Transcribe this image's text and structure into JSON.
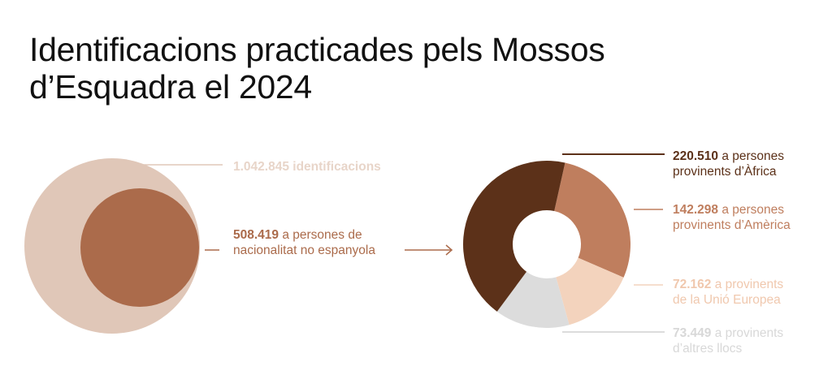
{
  "title": "Identificacions practicades pels Mossos d’Esquadra el 2024",
  "colors": {
    "total": "#e0c7b8",
    "non_spanish": "#ab6b4b",
    "africa": "#5c3119",
    "america": "#bf7e5e",
    "eu": "#f3d3bd",
    "other": "#dcdcdc",
    "total_text": "#e8d5c9",
    "eu_text": "#f0c8ae",
    "other_text": "#d8d8d8"
  },
  "labels": {
    "total": {
      "number": "1.042.845",
      "text": " identificacions"
    },
    "non_spanish": {
      "number": "508.419",
      "text": " a persones de",
      "text2": "nacionalitat no espanyola"
    },
    "africa": {
      "number": "220.510",
      "text": " a persones",
      "text2": "provinents d’Àfrica"
    },
    "america": {
      "number": "142.298",
      "text": " a persones",
      "text2": "provinents d’Amèrica"
    },
    "eu": {
      "number": "72.162",
      "text": " a provinents",
      "text2": "de la Unió Europea"
    },
    "other": {
      "number": "73.449",
      "text": " a provinents",
      "text2": "d’altres llocs"
    }
  },
  "chart_data": [
    {
      "type": "nested-circle",
      "title": "",
      "values": [
        {
          "label": "identificacions",
          "value": 1042845
        },
        {
          "label": "a persones de nacionalitat no espanyola",
          "value": 508419
        }
      ]
    },
    {
      "type": "pie",
      "title": "",
      "variant": "donut",
      "slices": [
        {
          "label": "a persones provinents d’Àfrica",
          "value": 220510,
          "color": "#5c3119"
        },
        {
          "label": "a persones provinents d’Amèrica",
          "value": 142298,
          "color": "#bf7e5e"
        },
        {
          "label": "a provinents de la Unió Europea",
          "value": 72162,
          "color": "#f3d3bd"
        },
        {
          "label": "a provinents d’altres llocs",
          "value": 73449,
          "color": "#dcdcdc"
        }
      ]
    }
  ]
}
